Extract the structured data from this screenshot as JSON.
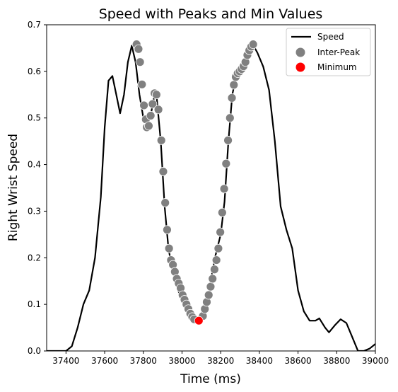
{
  "chart_data": {
    "type": "line",
    "title": "Speed with Peaks and Min Values",
    "xlabel": "Time (ms)",
    "ylabel": "Right Wrist Speed",
    "xlim": [
      37300,
      39000
    ],
    "ylim": [
      0.0,
      0.7
    ],
    "grid": false,
    "legend_position": "top-right",
    "x_ticks": [
      "37400",
      "37600",
      "37800",
      "38000",
      "38200",
      "38400",
      "38600",
      "38800",
      "39000"
    ],
    "y_ticks": [
      "0.0",
      "0.1",
      "0.2",
      "0.3",
      "0.4",
      "0.5",
      "0.6",
      "0.7"
    ],
    "legend": [
      {
        "label": "Speed",
        "kind": "line",
        "color": "#000000"
      },
      {
        "label": "Inter-Peak",
        "kind": "marker",
        "color": "#808080"
      },
      {
        "label": "Minimum",
        "kind": "marker",
        "color": "#ff0000"
      }
    ],
    "series": [
      {
        "name": "Speed",
        "color": "#000000",
        "points": [
          [
            37300,
            0.0
          ],
          [
            37400,
            0.0
          ],
          [
            37430,
            0.01
          ],
          [
            37460,
            0.05
          ],
          [
            37490,
            0.1
          ],
          [
            37520,
            0.13
          ],
          [
            37550,
            0.2
          ],
          [
            37580,
            0.33
          ],
          [
            37600,
            0.48
          ],
          [
            37620,
            0.58
          ],
          [
            37640,
            0.59
          ],
          [
            37660,
            0.55
          ],
          [
            37680,
            0.51
          ],
          [
            37700,
            0.55
          ],
          [
            37720,
            0.62
          ],
          [
            37740,
            0.655
          ],
          [
            37760,
            0.62
          ],
          [
            37780,
            0.55
          ],
          [
            37800,
            0.5
          ],
          [
            37820,
            0.49
          ],
          [
            37840,
            0.51
          ],
          [
            37860,
            0.555
          ],
          [
            37870,
            0.54
          ],
          [
            37890,
            0.45
          ],
          [
            37910,
            0.31
          ],
          [
            37930,
            0.22
          ],
          [
            37950,
            0.175
          ],
          [
            37980,
            0.13
          ],
          [
            38010,
            0.1
          ],
          [
            38040,
            0.08
          ],
          [
            38070,
            0.07
          ],
          [
            38090,
            0.065
          ],
          [
            38110,
            0.085
          ],
          [
            38140,
            0.13
          ],
          [
            38170,
            0.2
          ],
          [
            38200,
            0.25
          ],
          [
            38220,
            0.32
          ],
          [
            38240,
            0.45
          ],
          [
            38260,
            0.55
          ],
          [
            38280,
            0.59
          ],
          [
            38300,
            0.61
          ],
          [
            38340,
            0.63
          ],
          [
            38370,
            0.655
          ],
          [
            38390,
            0.64
          ],
          [
            38420,
            0.61
          ],
          [
            38450,
            0.56
          ],
          [
            38480,
            0.45
          ],
          [
            38510,
            0.31
          ],
          [
            38540,
            0.26
          ],
          [
            38570,
            0.22
          ],
          [
            38600,
            0.13
          ],
          [
            38630,
            0.085
          ],
          [
            38660,
            0.065
          ],
          [
            38690,
            0.065
          ],
          [
            38710,
            0.07
          ],
          [
            38740,
            0.05
          ],
          [
            38760,
            0.04
          ],
          [
            38790,
            0.055
          ],
          [
            38820,
            0.068
          ],
          [
            38850,
            0.06
          ],
          [
            38880,
            0.03
          ],
          [
            38910,
            0.0
          ],
          [
            38940,
            0.0
          ],
          [
            38970,
            0.005
          ],
          [
            39000,
            0.015
          ]
        ]
      },
      {
        "name": "Inter-Peak",
        "color": "#808080",
        "points": [
          [
            37765,
            0.658
          ],
          [
            37775,
            0.648
          ],
          [
            37783,
            0.62
          ],
          [
            37793,
            0.572
          ],
          [
            37803,
            0.527
          ],
          [
            37813,
            0.497
          ],
          [
            37818,
            0.48
          ],
          [
            37828,
            0.483
          ],
          [
            37838,
            0.505
          ],
          [
            37848,
            0.53
          ],
          [
            37858,
            0.553
          ],
          [
            37868,
            0.55
          ],
          [
            37878,
            0.518
          ],
          [
            37893,
            0.452
          ],
          [
            37903,
            0.385
          ],
          [
            37913,
            0.318
          ],
          [
            37923,
            0.26
          ],
          [
            37933,
            0.22
          ],
          [
            37943,
            0.195
          ],
          [
            37953,
            0.185
          ],
          [
            37963,
            0.17
          ],
          [
            37973,
            0.155
          ],
          [
            37983,
            0.145
          ],
          [
            37993,
            0.135
          ],
          [
            38003,
            0.12
          ],
          [
            38013,
            0.11
          ],
          [
            38023,
            0.1
          ],
          [
            38033,
            0.09
          ],
          [
            38043,
            0.08
          ],
          [
            38053,
            0.073
          ],
          [
            38063,
            0.068
          ],
          [
            38108,
            0.075
          ],
          [
            38118,
            0.09
          ],
          [
            38128,
            0.105
          ],
          [
            38138,
            0.12
          ],
          [
            38148,
            0.138
          ],
          [
            38158,
            0.155
          ],
          [
            38168,
            0.175
          ],
          [
            38178,
            0.195
          ],
          [
            38188,
            0.22
          ],
          [
            38198,
            0.255
          ],
          [
            38208,
            0.297
          ],
          [
            38218,
            0.348
          ],
          [
            38228,
            0.402
          ],
          [
            38238,
            0.452
          ],
          [
            38248,
            0.5
          ],
          [
            38258,
            0.543
          ],
          [
            38268,
            0.571
          ],
          [
            38278,
            0.588
          ],
          [
            38288,
            0.596
          ],
          [
            38298,
            0.6
          ],
          [
            38308,
            0.605
          ],
          [
            38318,
            0.611
          ],
          [
            38328,
            0.62
          ],
          [
            38338,
            0.635
          ],
          [
            38348,
            0.645
          ],
          [
            38358,
            0.653
          ],
          [
            38368,
            0.658
          ]
        ]
      },
      {
        "name": "Minimum",
        "color": "#ff0000",
        "points": [
          [
            38087,
            0.065
          ]
        ]
      }
    ]
  }
}
